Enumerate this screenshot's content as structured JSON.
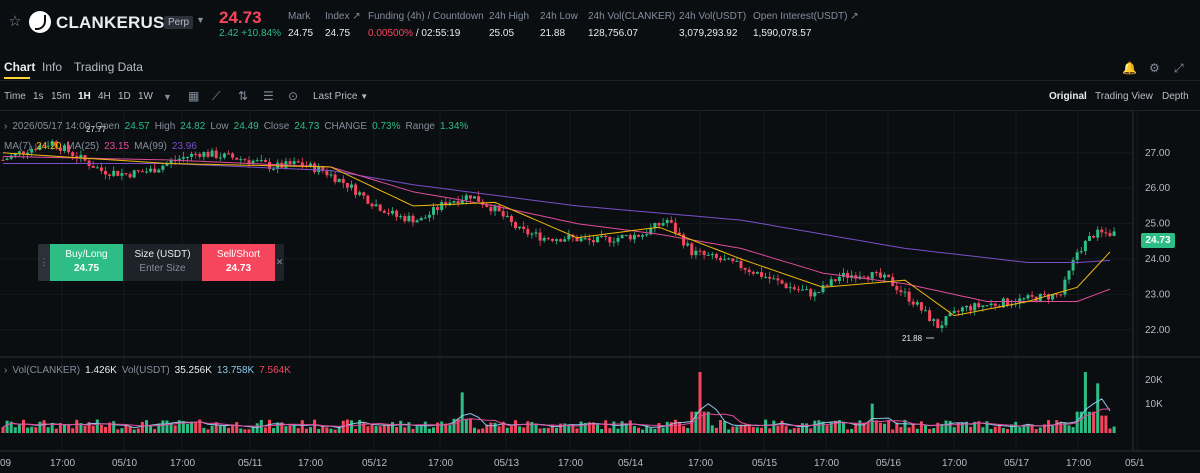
{
  "ticker": {
    "symbol": "CLANKERUSDT",
    "contract_type": "Perp",
    "last_price": "24.73",
    "change_abs": "2.42",
    "change_pct": "+10.84%",
    "mark_label": "Mark",
    "mark_value": "24.75",
    "index_label": "Index",
    "index_value": "24.75",
    "funding_label": "Funding (4h) / Countdown",
    "funding_rate": "0.00500%",
    "countdown": "/ 02:55:19",
    "high_label": "24h High",
    "high_value": "25.05",
    "low_label": "24h Low",
    "low_value": "21.88",
    "vol_base_label": "24h Vol(CLANKER)",
    "vol_base_value": "128,756.07",
    "vol_quote_label": "24h Vol(USDT)",
    "vol_quote_value": "3,079,293.92",
    "oi_label": "Open Interest(USDT)",
    "oi_value": "1,590,078.57"
  },
  "tabs": [
    {
      "label": "Chart"
    },
    {
      "label": "Info"
    },
    {
      "label": "Trading Data"
    }
  ],
  "toolbar": {
    "time_label": "Time",
    "intervals": [
      "1s",
      "15m",
      "1H",
      "4H",
      "1D",
      "1W"
    ],
    "active_interval": "1H",
    "price_type": "Last Price",
    "views": [
      "Original",
      "Trading View",
      "Depth"
    ],
    "active_view": "Original"
  },
  "legend": {
    "date": "2026/05/17 14:00",
    "open_label": "Open",
    "open": "24.57",
    "high_label": "High",
    "high": "24.82",
    "low_label": "Low",
    "low": "24.49",
    "close_label": "Close",
    "close": "24.73",
    "change_label": "CHANGE",
    "change": "0.73%",
    "range_label": "Range",
    "range": "1.34%",
    "ma7_label": "MA(7)",
    "ma7": "24.20",
    "ma25_label": "MA(25)",
    "ma25": "23.15",
    "ma99_label": "MA(99)",
    "ma99": "23.96",
    "max_marker": "27.77",
    "min_marker": "21.88"
  },
  "vol_legend": {
    "base_label": "Vol(CLANKER)",
    "base": "1.426K",
    "quote_label": "Vol(USDT)",
    "quote": "35.256K",
    "ma_a": "13.758K",
    "ma_b": "7.564K"
  },
  "order_panel": {
    "buy_label": "Buy/Long",
    "buy_price": "24.75",
    "size_label": "Size (USDT)",
    "size_placeholder": "Enter Size",
    "sell_label": "Sell/Short",
    "sell_price": "24.73"
  },
  "current_price_tag": "24.73",
  "colors": {
    "up": "#2ebd85",
    "down": "#f6465d",
    "ma7": "#f0b90b",
    "ma25": "#e14c9c",
    "ma99": "#7b4fc9",
    "accent": "#fcd535"
  },
  "chart_data": {
    "type": "candlestick",
    "price_axis_ticks": [
      "27.00",
      "26.00",
      "25.00",
      "24.00",
      "23.00",
      "22.00"
    ],
    "price_range": [
      21.4,
      27.9
    ],
    "volume_axis_ticks": [
      "20K",
      "10K"
    ],
    "volume_range": [
      0,
      31000
    ],
    "x_ticks": [
      "09",
      "17:00",
      "05/10",
      "17:00",
      "05/11",
      "17:00",
      "05/12",
      "17:00",
      "05/13",
      "17:00",
      "05/14",
      "17:00",
      "05/15",
      "17:00",
      "05/16",
      "17:00",
      "05/17",
      "17:00",
      "05/1"
    ],
    "close_path": [
      [
        0,
        26.8
      ],
      [
        6,
        27.1
      ],
      [
        12,
        27.3
      ],
      [
        18,
        26.9
      ],
      [
        24,
        26.5
      ],
      [
        30,
        26.4
      ],
      [
        36,
        26.5
      ],
      [
        42,
        26.8
      ],
      [
        48,
        27.0
      ],
      [
        54,
        26.9
      ],
      [
        60,
        26.8
      ],
      [
        66,
        26.6
      ],
      [
        72,
        26.7
      ],
      [
        78,
        26.5
      ],
      [
        84,
        26.1
      ],
      [
        90,
        25.6
      ],
      [
        96,
        25.2
      ],
      [
        102,
        25.1
      ],
      [
        108,
        25.6
      ],
      [
        114,
        25.8
      ],
      [
        120,
        25.4
      ],
      [
        126,
        24.8
      ],
      [
        132,
        24.6
      ],
      [
        138,
        24.6
      ],
      [
        144,
        24.5
      ],
      [
        150,
        24.6
      ],
      [
        156,
        24.7
      ],
      [
        162,
        25.1
      ],
      [
        168,
        24.2
      ],
      [
        174,
        24.0
      ],
      [
        180,
        23.8
      ],
      [
        186,
        23.5
      ],
      [
        192,
        23.2
      ],
      [
        198,
        23.0
      ],
      [
        204,
        23.5
      ],
      [
        210,
        23.6
      ],
      [
        216,
        23.4
      ],
      [
        222,
        22.8
      ],
      [
        228,
        22.1
      ],
      [
        234,
        22.6
      ],
      [
        240,
        22.7
      ],
      [
        246,
        22.8
      ],
      [
        252,
        22.9
      ],
      [
        258,
        23.0
      ],
      [
        262,
        24.2
      ],
      [
        266,
        24.7
      ],
      [
        270,
        24.73
      ]
    ],
    "ma7_path": [
      [
        0,
        27.0
      ],
      [
        40,
        26.7
      ],
      [
        80,
        26.6
      ],
      [
        100,
        25.5
      ],
      [
        120,
        25.6
      ],
      [
        140,
        24.6
      ],
      [
        160,
        24.9
      ],
      [
        180,
        24.0
      ],
      [
        200,
        23.2
      ],
      [
        220,
        23.4
      ],
      [
        232,
        22.4
      ],
      [
        250,
        22.8
      ],
      [
        262,
        23.2
      ],
      [
        270,
        24.2
      ]
    ],
    "ma25_path": [
      [
        0,
        26.9
      ],
      [
        40,
        26.8
      ],
      [
        80,
        26.6
      ],
      [
        100,
        25.9
      ],
      [
        120,
        25.5
      ],
      [
        140,
        25.0
      ],
      [
        160,
        24.7
      ],
      [
        180,
        24.3
      ],
      [
        200,
        23.6
      ],
      [
        220,
        23.3
      ],
      [
        240,
        22.8
      ],
      [
        262,
        22.8
      ],
      [
        270,
        23.15
      ]
    ],
    "ma99_path": [
      [
        0,
        26.7
      ],
      [
        40,
        26.7
      ],
      [
        80,
        26.5
      ],
      [
        100,
        26.1
      ],
      [
        120,
        25.8
      ],
      [
        140,
        25.5
      ],
      [
        160,
        25.3
      ],
      [
        180,
        25.1
      ],
      [
        200,
        24.7
      ],
      [
        220,
        24.3
      ],
      [
        250,
        23.9
      ],
      [
        262,
        23.9
      ],
      [
        270,
        23.96
      ]
    ],
    "volume_spikes": [
      [
        112,
        18000
      ],
      [
        170,
        27000
      ],
      [
        212,
        13000
      ],
      [
        264,
        27000
      ],
      [
        267,
        22000
      ]
    ]
  }
}
